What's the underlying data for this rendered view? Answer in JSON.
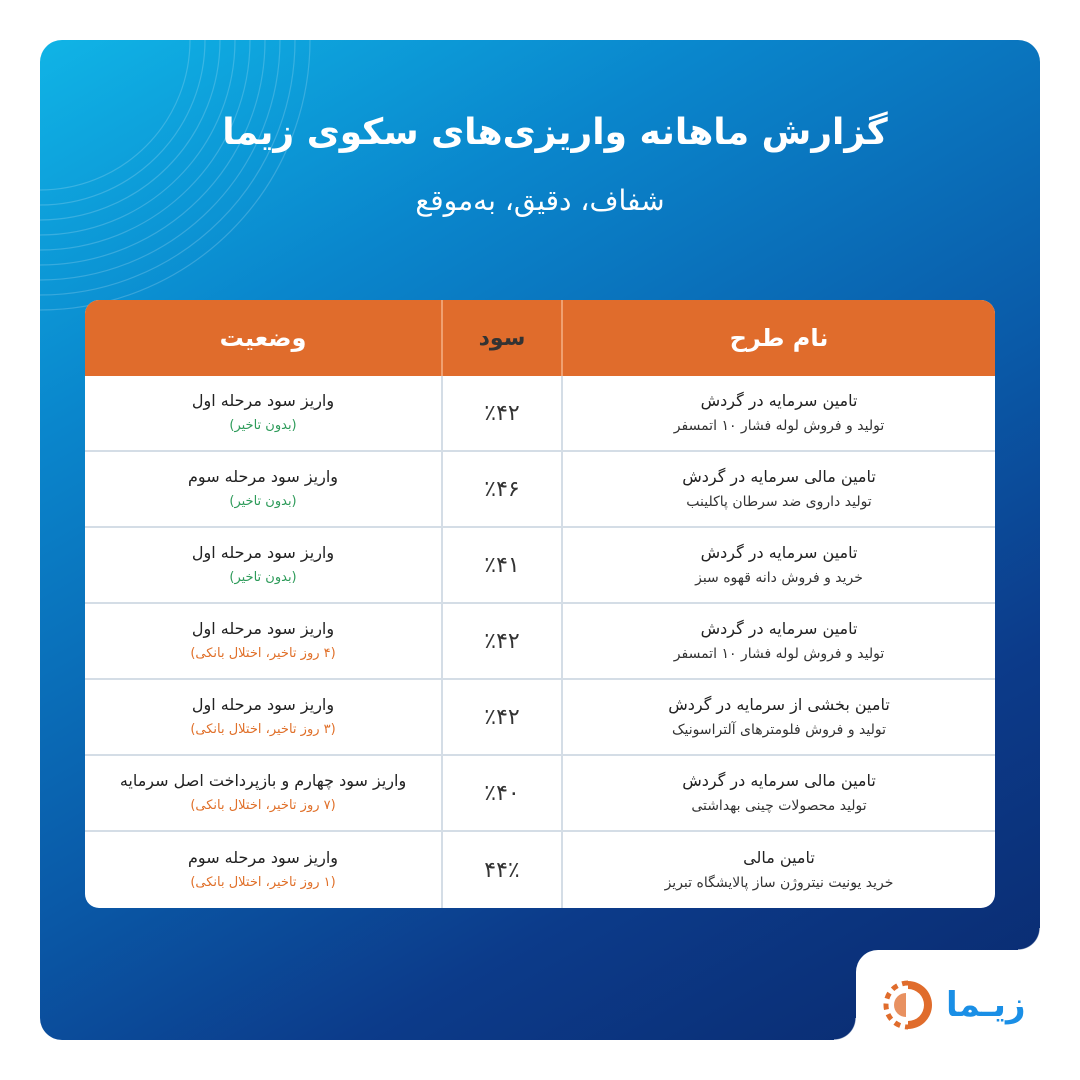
{
  "header": {
    "title": "گزارش ماهانه واریزی‌های سکوی زیما",
    "subtitle": "شفاف، دقیق، به‌موقع"
  },
  "table": {
    "columns": [
      "نام طرح",
      "سود",
      "وضعیت"
    ],
    "rows": [
      {
        "name": "تامین سرمایه در گردش",
        "desc": "تولید و فروش لوله فشار ۱۰ اتمسفر",
        "profit": "٪۴۲",
        "status": "واریز سود مرحله اول",
        "note": "(بدون تاخیر)",
        "note_type": "ontime"
      },
      {
        "name": "تامین مالی سرمایه در گردش",
        "desc": "تولید داروی ضد سرطان پاکلینب",
        "profit": "٪۴۶",
        "status": "واریز سود مرحله سوم",
        "note": "(بدون تاخیر)",
        "note_type": "ontime"
      },
      {
        "name": "تامین سرمایه در گردش",
        "desc": "خرید و فروش دانه قهوه سبز",
        "profit": "٪۴۱",
        "status": "واریز سود مرحله اول",
        "note": "(بدون تاخیر)",
        "note_type": "ontime"
      },
      {
        "name": "تامین سرمایه در گردش",
        "desc": "تولید و فروش لوله فشار ۱۰ اتمسفر",
        "profit": "٪۴۲",
        "status": "واریز سود مرحله اول",
        "note": "(۴ روز تاخیر، اختلال بانکی)",
        "note_type": "delayed"
      },
      {
        "name": "تامین بخشی از سرمایه در گردش",
        "desc": "تولید و فروش فلومترهای آلتراسونیک",
        "profit": "٪۴۲",
        "status": "واریز سود مرحله اول",
        "note": "(۳ روز تاخیر، اختلال بانکی)",
        "note_type": "delayed"
      },
      {
        "name": "تامین مالی سرمایه در گردش",
        "desc": "تولید محصولات چینی بهداشتی",
        "profit": "٪۴۰",
        "status": "واریز سود چهارم و بازپرداخت اصل سرمایه",
        "note": "(۷ روز تاخیر، اختلال بانکی)",
        "note_type": "delayed"
      },
      {
        "name": "تامین مالی",
        "desc": "خرید یونیت نیتروژن ساز پالایشگاه تبریز",
        "profit": "۴۴٪",
        "status": "واریز سود مرحله سوم",
        "note": "(۱ روز تاخیر، اختلال بانکی)",
        "note_type": "delayed"
      }
    ]
  },
  "logo": {
    "text": "زیـما",
    "icon": "zima-logo-icon"
  },
  "colors": {
    "header_orange": "#e06c2c",
    "ontime_green": "#2e9b5a",
    "delayed_orange": "#e0702a",
    "brand_blue": "#1a8fe6"
  }
}
